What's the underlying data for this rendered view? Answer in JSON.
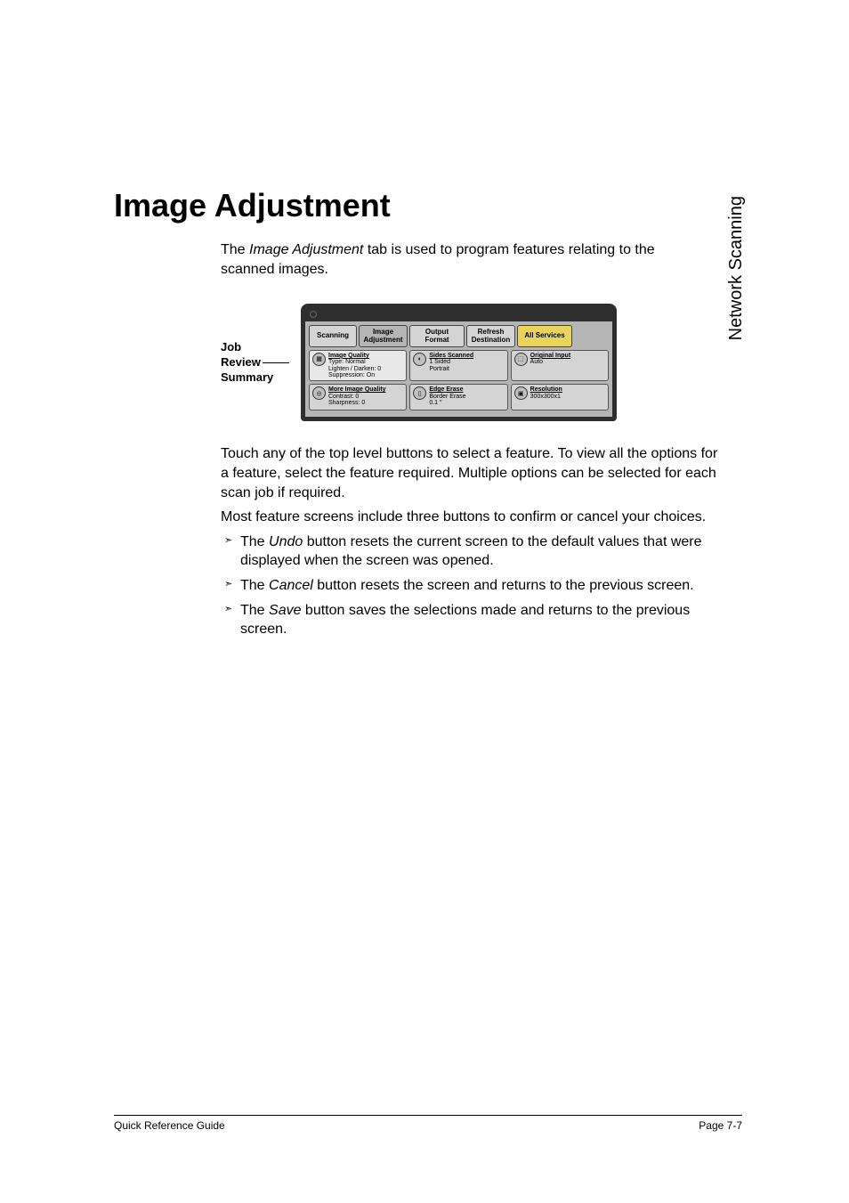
{
  "side_label": "Network Scanning",
  "heading": "Image Adjustment",
  "intro_prefix": "The ",
  "intro_em": "Image Adjustment",
  "intro_suffix": " tab is used to program features relating to the scanned images.",
  "figure_label": {
    "line1": "Job",
    "line2": "Review",
    "line3": "Summary"
  },
  "ui": {
    "tabs": {
      "scanning": "Scanning",
      "image_adjustment": "Image Adjustment",
      "output_format": "Output Format",
      "refresh_destination": "Refresh Destination",
      "all_services": "All Services"
    },
    "row1": {
      "image_quality": {
        "title": "Image Quality",
        "l1": "Type: Normal",
        "l2": "Lighten / Darken: 0",
        "l3": "Suppression: On"
      },
      "sides_scanned": {
        "title": "Sides Scanned",
        "l1": "1 Sided",
        "l2": "Portrait"
      },
      "original_input": {
        "title": "Original Input",
        "l1": "Auto"
      }
    },
    "row2": {
      "more_iq": {
        "title": "More Image Quality",
        "l1": "Contrast: 0",
        "l2": "Sharpness: 0"
      },
      "edge_erase": {
        "title": "Edge Erase",
        "l1": "Border Erase",
        "l2": "0.1 ″"
      },
      "resolution": {
        "title": "Resolution",
        "l1": "300x300x1"
      }
    }
  },
  "para2": "Touch any of the top level buttons to select a feature. To view all the options for a feature, select the feature required. Multiple options can be selected for each scan job if required.",
  "para3": "Most feature screens include three buttons to confirm or cancel your choices.",
  "bullets": {
    "b1_pre": "The ",
    "b1_em": "Undo",
    "b1_post": " button resets the current screen to the default values that were displayed when the screen was opened.",
    "b2_pre": "The ",
    "b2_em": "Cancel",
    "b2_post": " button resets the screen and returns to the previous screen.",
    "b3_pre": "The ",
    "b3_em": "Save",
    "b3_post": " button saves the selections made and returns to the previous screen."
  },
  "footer_left": "Quick Reference Guide",
  "footer_right": "Page 7-7",
  "colors": {
    "bg": "#ffffff",
    "text": "#000000",
    "ui_outer": "#2e2e2e",
    "ui_inner": "#b5b5b5",
    "tab_default": "#d4d4d4",
    "tab_allsvc": "#e8d45a"
  }
}
